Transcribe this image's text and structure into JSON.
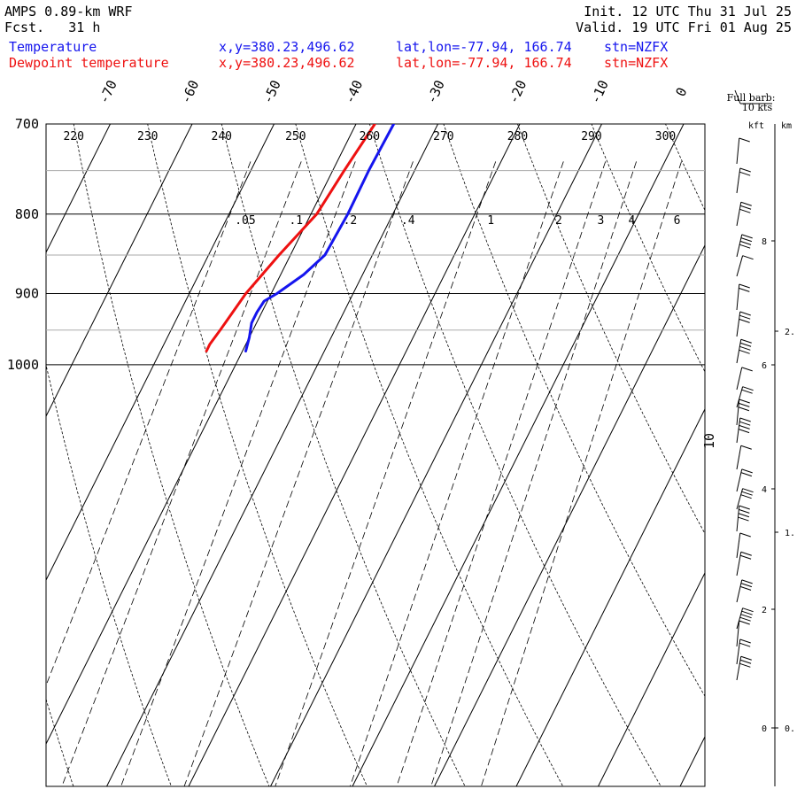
{
  "header": {
    "model_line": "AMPS 0.89-km WRF",
    "fcst_line": "Fcst.   31 h",
    "init_line": "Init. 12 UTC Thu 31 Jul 25",
    "valid_line": "Valid. 19 UTC Fri 01 Aug 25",
    "temp_label": "Temperature",
    "dew_label": "Dewpoint temperature",
    "xy_label": "x,y=380.23,496.62",
    "latlon_label": "lat,lon=-77.94, 166.74",
    "stn_label": "stn=NZFX"
  },
  "colors": {
    "temperature": "#1515ee",
    "dewpoint": "#ee1111",
    "grid": "#000000",
    "minor_grid": "#aaaaaa"
  },
  "barb_panel": {
    "note_line1": "Full barb:",
    "note_line2": "10 kts",
    "kft_label": "kft",
    "km_label": "km",
    "kft_ticks": [
      "8",
      "6",
      "4",
      "2",
      "0"
    ],
    "km_ticks": [
      "2.",
      "1.",
      "0."
    ]
  },
  "chart_data": {
    "type": "line",
    "title": "",
    "y_axis": {
      "label": "",
      "scale": "log",
      "range": [
        1040,
        700
      ],
      "tick_labels": [
        700,
        800,
        900,
        1000
      ]
    },
    "x_axis": {
      "label": "",
      "skewed_isotherm_labels": [
        -70,
        -60,
        -50,
        -40,
        -30,
        -20,
        -10,
        0
      ]
    },
    "extra_labels": {
      "isotherm_10": "10"
    },
    "dry_adiabat_labels": [
      220,
      230,
      240,
      250,
      260,
      270,
      280,
      290,
      300
    ],
    "mixing_ratio_labels": [
      ".05",
      ".1",
      ".2",
      ".4",
      "1",
      "2",
      "3",
      "4",
      "6"
    ],
    "series": [
      {
        "name": "Temperature",
        "points": [
          [
            700,
            -35.4
          ],
          [
            750,
            -35.6
          ],
          [
            800,
            -35.5
          ],
          [
            850,
            -35.8
          ],
          [
            875,
            -37.2
          ],
          [
            900,
            -39.3
          ],
          [
            910,
            -40.4
          ],
          [
            925,
            -40.6
          ],
          [
            940,
            -40.6
          ],
          [
            960,
            -40.0
          ],
          [
            980,
            -39.6
          ]
        ]
      },
      {
        "name": "Dewpoint temperature",
        "points": [
          [
            700,
            -37.7
          ],
          [
            750,
            -38.6
          ],
          [
            800,
            -39.3
          ],
          [
            850,
            -41.4
          ],
          [
            900,
            -43.1
          ],
          [
            950,
            -44.0
          ],
          [
            970,
            -44.4
          ],
          [
            980,
            -44.4
          ]
        ]
      }
    ]
  }
}
